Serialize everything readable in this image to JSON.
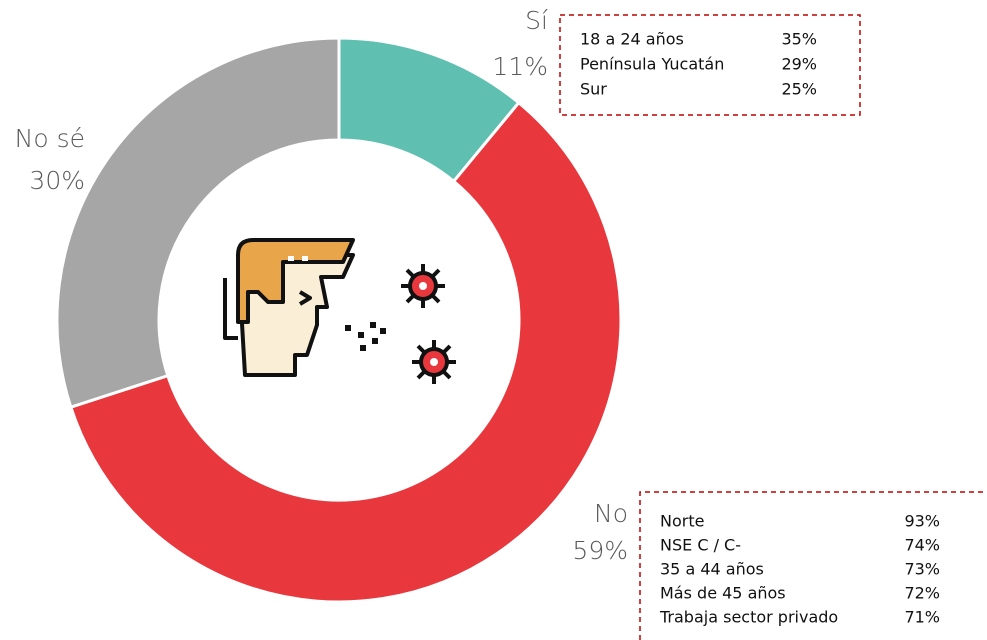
{
  "chart_data": {
    "type": "donut",
    "categories": [
      "Sí",
      "No",
      "No sé"
    ],
    "values": [
      11,
      59,
      30
    ],
    "value_labels": [
      "11%",
      "59%",
      "30%"
    ],
    "colors": [
      "#5fbfb0",
      "#e8383d",
      "#a6a6a6"
    ],
    "annotations": [
      {
        "items": [
          {
            "label": "18 a 24 años",
            "value": "35%"
          },
          {
            "label": "Península Yucatán",
            "value": "29%"
          },
          {
            "label": "Sur",
            "value": "25%"
          }
        ]
      },
      {
        "items": [
          {
            "label": "Norte",
            "value": "93%"
          },
          {
            "label": "NSE C / C-",
            "value": "74%"
          },
          {
            "label": "35 a 44 años",
            "value": "73%"
          },
          {
            "label": "Más de 45 años",
            "value": "72%"
          },
          {
            "label": "Trabaja sector privado",
            "value": "71%"
          }
        ]
      }
    ]
  }
}
